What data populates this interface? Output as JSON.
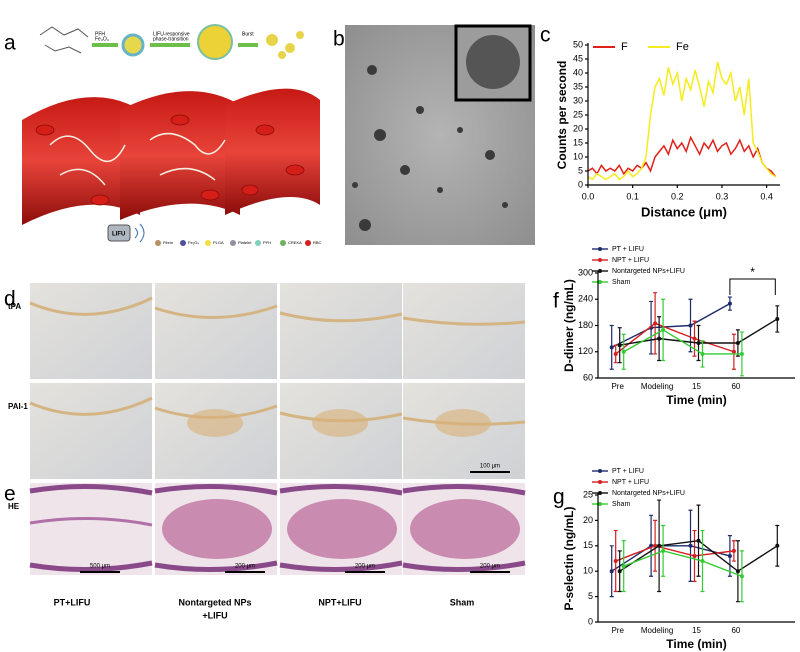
{
  "panel_labels": [
    "a",
    "b",
    "c",
    "d",
    "e",
    "f",
    "g"
  ],
  "scheme": {
    "reagents": [
      "PFH",
      "Fe₃O₄"
    ],
    "step2": [
      "LIFU-responsive",
      "phase-transition"
    ],
    "step3": "Burst",
    "device": "LIFU",
    "legend": [
      "Fibrin",
      "Fe₃O₄",
      "PLGA",
      "Platelet",
      "PFH",
      "CREKA",
      "RBC"
    ]
  },
  "histology": {
    "rows": [
      "tPA",
      "PAI-1",
      "HE"
    ],
    "columns": [
      [
        "PT+LIFU"
      ],
      [
        "Nontargeted NPs",
        "+LIFU"
      ],
      [
        "NPT+LIFU"
      ],
      [
        "Sham"
      ]
    ],
    "scale_bars": [
      "100 μm",
      "500 μm",
      "200 μm",
      "200 μm",
      "200 μm"
    ]
  },
  "chart_data": [
    {
      "type": "line",
      "ylabel": "Counts per second",
      "xlabel": "Distance (μm)",
      "x": [
        0,
        0.01,
        0.02,
        0.03,
        0.04,
        0.05,
        0.06,
        0.07,
        0.08,
        0.09,
        0.1,
        0.11,
        0.12,
        0.13,
        0.14,
        0.15,
        0.16,
        0.17,
        0.18,
        0.19,
        0.2,
        0.21,
        0.22,
        0.23,
        0.24,
        0.25,
        0.26,
        0.27,
        0.28,
        0.29,
        0.3,
        0.31,
        0.32,
        0.33,
        0.34,
        0.35,
        0.36,
        0.37,
        0.38,
        0.39,
        0.4,
        0.41,
        0.42
      ],
      "series": [
        {
          "name": "F",
          "color": "#e0201a",
          "values": [
            5,
            6,
            4,
            7,
            5,
            6,
            5,
            7,
            4,
            6,
            5,
            7,
            6,
            8,
            5,
            10,
            12,
            14,
            11,
            16,
            13,
            15,
            12,
            17,
            14,
            11,
            15,
            13,
            16,
            12,
            14,
            15,
            11,
            13,
            16,
            12,
            14,
            10,
            13,
            8,
            6,
            5,
            3
          ]
        },
        {
          "name": "Fe",
          "color": "#f5ec1c",
          "values": [
            3,
            2,
            4,
            3,
            2,
            3,
            4,
            2,
            3,
            5,
            3,
            4,
            6,
            10,
            25,
            35,
            38,
            32,
            42,
            36,
            40,
            30,
            38,
            34,
            41,
            35,
            28,
            37,
            33,
            44,
            38,
            36,
            40,
            30,
            35,
            25,
            38,
            15,
            12,
            8,
            6,
            4,
            3
          ]
        }
      ],
      "xlim": [
        0,
        0.43
      ],
      "xticks": [
        {
          "value": 0,
          "label": "0.0"
        },
        {
          "value": 0.1,
          "label": "0.1"
        },
        {
          "value": 0.2,
          "label": "0.2"
        },
        {
          "value": 0.3,
          "label": "0.3"
        },
        {
          "value": 0.4,
          "label": "0.4"
        }
      ],
      "ylim": [
        0,
        50
      ],
      "yticks": [
        0,
        5,
        10,
        15,
        20,
        25,
        30,
        35,
        40,
        45,
        50
      ]
    },
    {
      "type": "errorline",
      "ylabel": "D-dimer (ng/mL)",
      "xlabel": "Time (min)",
      "categories": [
        "Pre",
        "Modeling",
        "15",
        "60",
        null
      ],
      "series": [
        {
          "name": "PT + LIFU",
          "color": "#1f2a6b",
          "values": [
            130,
            175,
            180,
            230,
            null
          ],
          "errors": [
            50,
            60,
            60,
            15,
            null
          ]
        },
        {
          "name": "NPT + LIFU",
          "color": "#d42020",
          "values": [
            115,
            185,
            150,
            120,
            null
          ],
          "errors": [
            20,
            70,
            40,
            40,
            null
          ]
        },
        {
          "name": "Nontargeted NPs+LIFU",
          "color": "#111111",
          "values": [
            135,
            150,
            140,
            140,
            195
          ],
          "errors": [
            40,
            50,
            40,
            30,
            30
          ]
        },
        {
          "name": "Sham",
          "color": "#33cc33",
          "values": [
            120,
            170,
            115,
            115,
            null
          ],
          "errors": [
            40,
            70,
            30,
            50,
            null
          ]
        }
      ],
      "ylim": [
        60,
        300
      ],
      "yticks": [
        60,
        120,
        180,
        240,
        300
      ],
      "annotations": [
        "*"
      ]
    },
    {
      "type": "errorline",
      "ylabel": "P-selectin (ng/mL)",
      "xlabel": "Time (min)",
      "categories": [
        "Pre",
        "Modeling",
        "15",
        "60",
        null
      ],
      "series": [
        {
          "name": "PT + LIFU",
          "color": "#1f2a6b",
          "values": [
            10,
            15,
            15,
            13,
            null
          ],
          "errors": [
            5,
            6,
            7,
            4,
            null
          ]
        },
        {
          "name": "NPT + LIFU",
          "color": "#d42020",
          "values": [
            12,
            15,
            13,
            14,
            null
          ],
          "errors": [
            6,
            5,
            5,
            2,
            null
          ]
        },
        {
          "name": "Nontargeted NPs+LIFU",
          "color": "#111111",
          "values": [
            10,
            15,
            16,
            10,
            15
          ],
          "errors": [
            4,
            9,
            7,
            6,
            4
          ]
        },
        {
          "name": "Sham",
          "color": "#33cc33",
          "values": [
            11,
            14,
            12,
            9,
            null
          ],
          "errors": [
            5,
            5,
            6,
            5,
            null
          ]
        }
      ],
      "ylim": [
        0,
        25
      ],
      "yticks": [
        0,
        5,
        10,
        15,
        20,
        25
      ]
    }
  ]
}
